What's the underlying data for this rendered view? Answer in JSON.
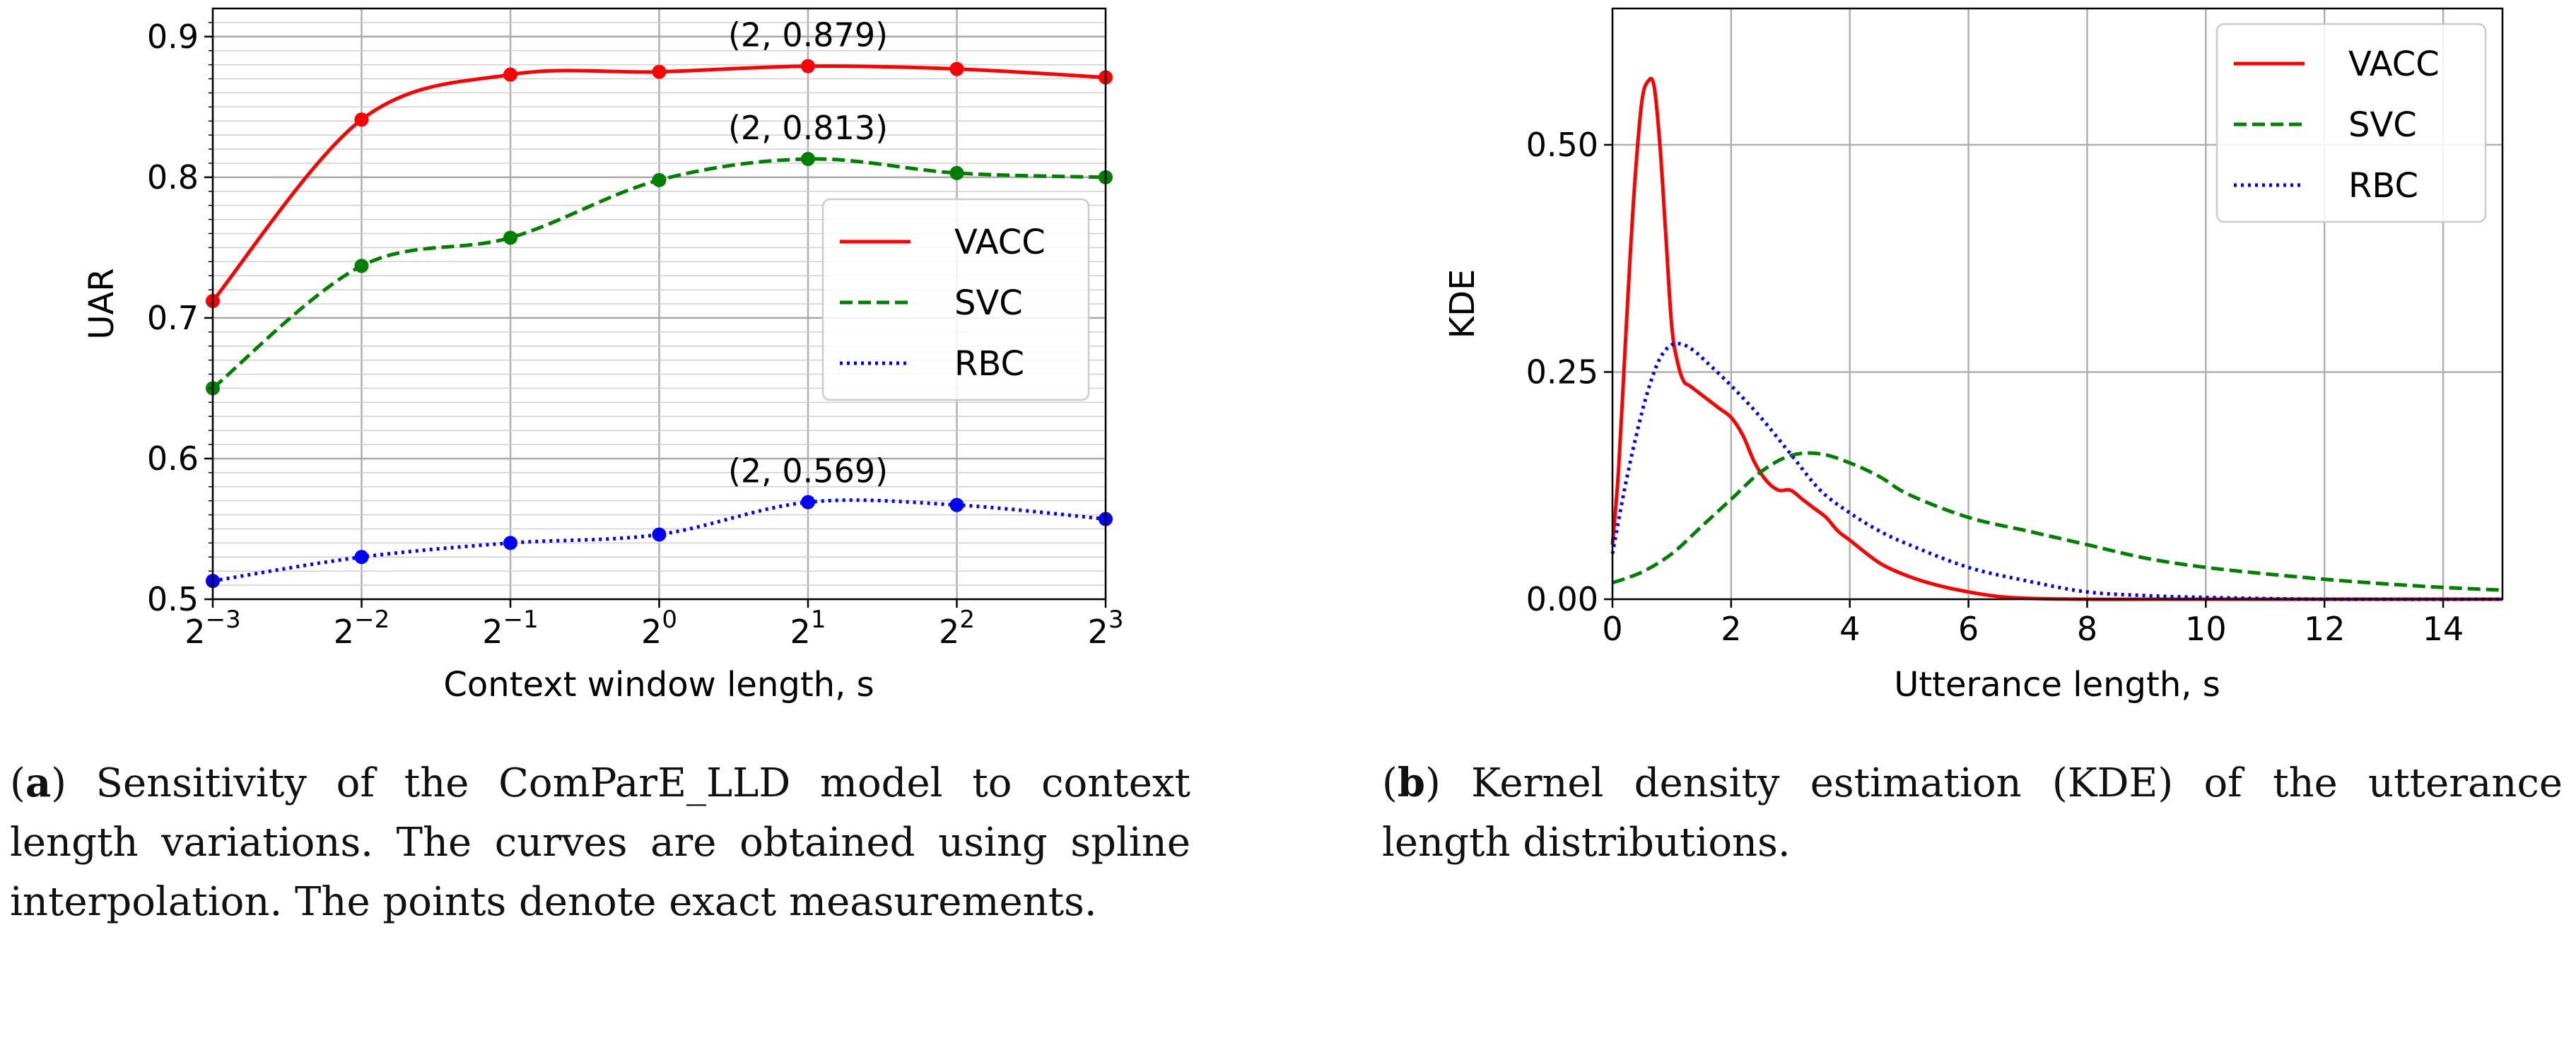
{
  "chart_data": [
    {
      "type": "line",
      "xlabel": "Context window length, s",
      "ylabel": "UAR",
      "x_scale": "log2",
      "x": [
        -3,
        -2,
        -1,
        0,
        1,
        2,
        3
      ],
      "x_ticks": [
        {
          "base": "2",
          "exp": "−3"
        },
        {
          "base": "2",
          "exp": "−2"
        },
        {
          "base": "2",
          "exp": "−1"
        },
        {
          "base": "2",
          "exp": "0"
        },
        {
          "base": "2",
          "exp": "1"
        },
        {
          "base": "2",
          "exp": "2"
        },
        {
          "base": "2",
          "exp": "3"
        }
      ],
      "ylim": [
        0.5,
        0.92
      ],
      "y_ticks": [
        "0.5",
        "0.6",
        "0.7",
        "0.8",
        "0.9"
      ],
      "grid": true,
      "legend_position": "center-right",
      "series": [
        {
          "name": "VACC",
          "color": "#ff0000",
          "style": "solid",
          "values": [
            0.712,
            0.841,
            0.873,
            0.875,
            0.879,
            0.877,
            0.871
          ]
        },
        {
          "name": "SVC",
          "color": "#008000",
          "style": "dashed",
          "values": [
            0.65,
            0.737,
            0.757,
            0.798,
            0.813,
            0.803,
            0.8
          ]
        },
        {
          "name": "RBC",
          "color": "#0000ff",
          "style": "dotted",
          "values": [
            0.513,
            0.53,
            0.54,
            0.546,
            0.569,
            0.567,
            0.557
          ]
        }
      ],
      "annotations": [
        {
          "text": "(2, 0.879)",
          "series": "VACC"
        },
        {
          "text": "(2, 0.813)",
          "series": "SVC"
        },
        {
          "text": "(2, 0.569)",
          "series": "RBC"
        }
      ]
    },
    {
      "type": "line",
      "xlabel": "Utterance length, s",
      "ylabel": "KDE",
      "xlim": [
        0,
        15
      ],
      "ylim": [
        0,
        0.65
      ],
      "x_ticks": [
        "0",
        "2",
        "4",
        "6",
        "8",
        "10",
        "12",
        "14"
      ],
      "y_ticks": [
        "0.00",
        "0.25",
        "0.50"
      ],
      "grid": true,
      "legend_position": "top-right",
      "series": [
        {
          "name": "VACC",
          "color": "#ff0000",
          "style": "solid",
          "x": [
            0,
            0.1,
            0.2,
            0.3,
            0.4,
            0.5,
            0.6,
            0.7,
            0.8,
            0.9,
            1.0,
            1.1,
            1.2,
            1.3,
            1.4,
            1.6,
            1.8,
            2.0,
            2.2,
            2.4,
            2.6,
            2.8,
            3.0,
            3.2,
            3.4,
            3.6,
            3.8,
            4.0,
            4.5,
            5.0,
            5.5,
            6.0,
            6.5,
            7.0,
            8.0,
            10.0,
            15.0
          ],
          "y": [
            0.06,
            0.14,
            0.26,
            0.38,
            0.48,
            0.55,
            0.57,
            0.565,
            0.5,
            0.4,
            0.3,
            0.26,
            0.24,
            0.235,
            0.23,
            0.22,
            0.21,
            0.2,
            0.18,
            0.15,
            0.13,
            0.12,
            0.12,
            0.11,
            0.1,
            0.09,
            0.075,
            0.065,
            0.04,
            0.025,
            0.015,
            0.008,
            0.003,
            0.001,
            0.0,
            0.0,
            0.0
          ]
        },
        {
          "name": "SVC",
          "color": "#008000",
          "style": "dashed",
          "x": [
            0,
            0.5,
            1.0,
            1.5,
            2.0,
            2.5,
            3.0,
            3.5,
            4.0,
            4.5,
            5.0,
            6.0,
            7.0,
            8.0,
            9.0,
            10.0,
            11.0,
            12.0,
            13.0,
            14.0,
            15.0
          ],
          "y": [
            0.018,
            0.03,
            0.05,
            0.08,
            0.11,
            0.14,
            0.158,
            0.16,
            0.15,
            0.135,
            0.115,
            0.09,
            0.075,
            0.06,
            0.045,
            0.035,
            0.028,
            0.022,
            0.017,
            0.013,
            0.01
          ]
        },
        {
          "name": "RBC",
          "color": "#0000ff",
          "style": "dotted",
          "x": [
            0,
            0.2,
            0.4,
            0.6,
            0.8,
            1.0,
            1.2,
            1.4,
            1.6,
            2.0,
            2.5,
            3.0,
            3.5,
            4.0,
            4.5,
            5.0,
            6.0,
            7.0,
            8.0,
            9.0,
            10.0,
            12.0,
            15.0
          ],
          "y": [
            0.05,
            0.12,
            0.18,
            0.23,
            0.265,
            0.28,
            0.28,
            0.272,
            0.26,
            0.235,
            0.2,
            0.16,
            0.12,
            0.095,
            0.075,
            0.06,
            0.035,
            0.02,
            0.008,
            0.004,
            0.002,
            0.0,
            0.0
          ]
        }
      ]
    }
  ],
  "captions": {
    "a": {
      "label": "a",
      "lines": [
        "Sensitivity of the ComParE_LLD model to",
        "context length variations. The curves are obtained",
        "using spline interpolation. The points denote exact",
        "measurements."
      ]
    },
    "b": {
      "label": "b",
      "lines": [
        "Kernel density estimation (KDE) of the",
        "utterance length distributions."
      ]
    }
  }
}
